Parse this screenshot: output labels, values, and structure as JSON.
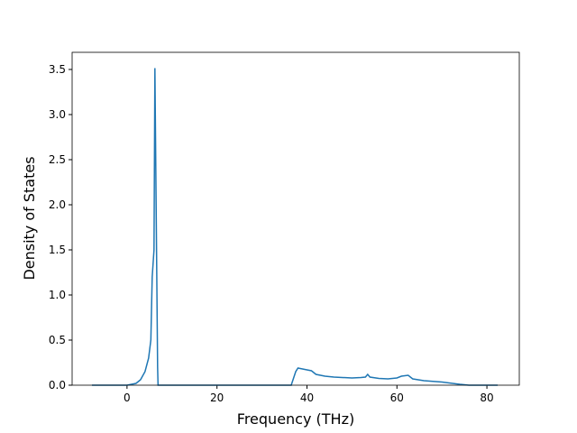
{
  "chart_data": {
    "type": "line",
    "x_label": "Frequency (THz)",
    "y_label": "Density of States",
    "x": [
      -7.8,
      0,
      2,
      3,
      4,
      4.8,
      5.3,
      5.6,
      6.0,
      6.2,
      6.8,
      6.9,
      36.5,
      37.5,
      38,
      39,
      40,
      41,
      42,
      44,
      46,
      50,
      52,
      53,
      53.5,
      54,
      56,
      58,
      60,
      61,
      62.5,
      63.5,
      66,
      70,
      74,
      76,
      82.4
    ],
    "series": [
      {
        "color": "#1f77b4",
        "values": [
          0,
          0,
          0.02,
          0.06,
          0.15,
          0.3,
          0.5,
          1.2,
          1.5,
          3.515,
          0.2,
          0,
          0,
          0.15,
          0.19,
          0.18,
          0.17,
          0.16,
          0.12,
          0.1,
          0.09,
          0.08,
          0.085,
          0.09,
          0.12,
          0.09,
          0.075,
          0.07,
          0.08,
          0.1,
          0.11,
          0.07,
          0.05,
          0.035,
          0.01,
          0,
          0
        ]
      }
    ],
    "xlim": [
      -12.2,
      87.2
    ],
    "ylim": [
      0,
      3.69
    ],
    "xticks": [
      0,
      20,
      40,
      60,
      80
    ],
    "yticks": [
      {
        "value": 0,
        "label": "0.0"
      },
      0.5,
      {
        "value": 1,
        "label": "1.0"
      },
      1.5,
      {
        "value": 2,
        "label": "2.0"
      },
      2.5,
      {
        "value": 3,
        "label": "3.0"
      },
      3.5
    ]
  }
}
